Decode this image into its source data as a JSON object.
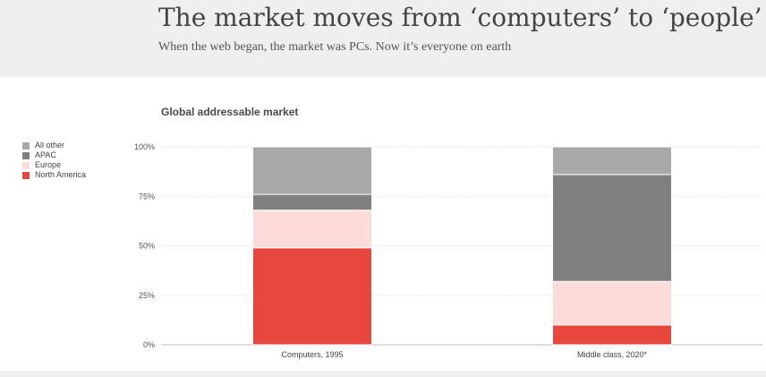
{
  "header": {
    "title": "The market moves from ‘computers’ to ‘people’",
    "subtitle": "When the web began, the market was PCs. Now it’s everyone on earth"
  },
  "chart_data": {
    "type": "bar",
    "stacked": true,
    "title": "Global addressable market",
    "categories": [
      "Computers, 1995",
      "Middle class, 2020*"
    ],
    "series": [
      {
        "name": "North America",
        "color": "#e8473e",
        "values": [
          49,
          10
        ]
      },
      {
        "name": "Europe",
        "color": "#fcdcdb",
        "values": [
          19,
          22
        ]
      },
      {
        "name": "APAC",
        "color": "#808080",
        "values": [
          8,
          54
        ]
      },
      {
        "name": "All other",
        "color": "#a8a8a8",
        "values": [
          24,
          14
        ]
      }
    ],
    "legend_order": [
      "All other",
      "APAC",
      "Europe",
      "North America"
    ],
    "legend_placement": "left",
    "ylim": [
      0,
      100
    ],
    "yticks": [
      "0%",
      "25%",
      "50%",
      "75%",
      "100%"
    ],
    "ytick_values": [
      0,
      25,
      50,
      75,
      100
    ],
    "grid": true
  }
}
